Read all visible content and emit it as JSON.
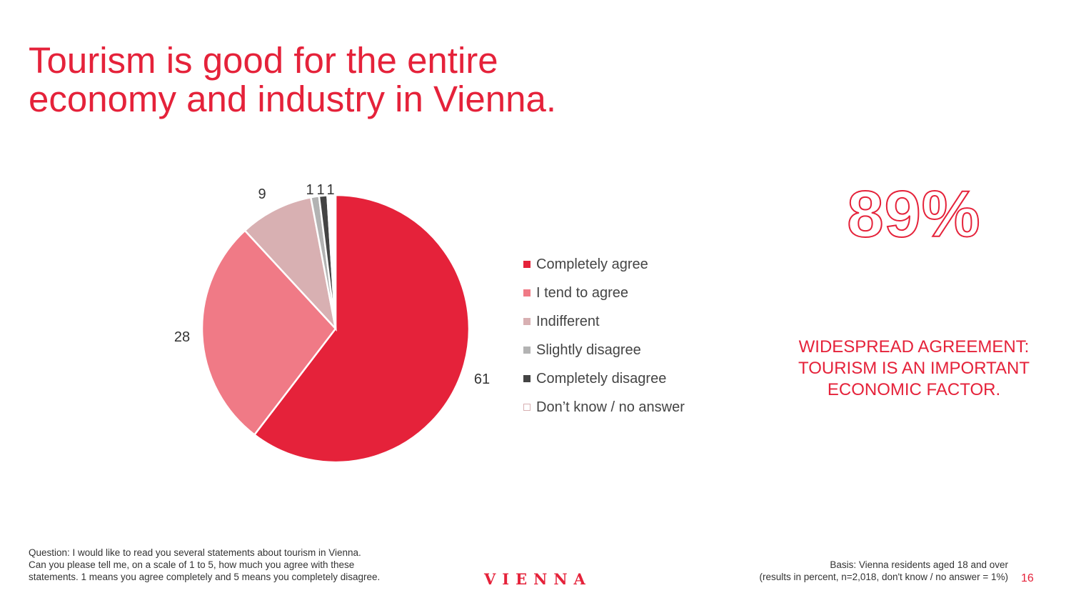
{
  "slide": {
    "title_line1": "Tourism is good for the entire",
    "title_line2": "economy and industry in Vienna.",
    "headline_pct": "89%",
    "callout_line1": "WIDESPREAD AGREEMENT:",
    "callout_line2": "TOURISM IS AN IMPORTANT",
    "callout_line3": "ECONOMIC FACTOR.",
    "question_line1": "Question: I would like to read you several statements about tourism in Vienna.",
    "question_line2": "Can you please tell me, on a scale of 1 to 5, how much you agree with these",
    "question_line3": "statements. 1 means you agree completely and 5 means you completely disagree.",
    "logo_text": "VIENNA",
    "basis_line1": "Basis: Vienna residents aged 18 and over",
    "basis_line2": "(results in percent, n=2,018, don't know / no answer = 1%)",
    "page_number": "16",
    "accent_color": "#e5223a"
  },
  "chart_data": {
    "type": "pie",
    "categories": [
      "Completely agree",
      "I tend to agree",
      "Indifferent",
      "Slightly disagree",
      "Completely disagree",
      "Don’t know / no answer"
    ],
    "values": [
      61,
      28,
      9,
      1,
      1,
      1
    ],
    "value_labels": [
      "61",
      "28",
      "9",
      "1",
      "1",
      "1"
    ],
    "colors": [
      "#e5223a",
      "#f07a86",
      "#d8b0b2",
      "#b3b3b3",
      "#444444",
      "#ffffff"
    ],
    "legend_position": "right"
  }
}
